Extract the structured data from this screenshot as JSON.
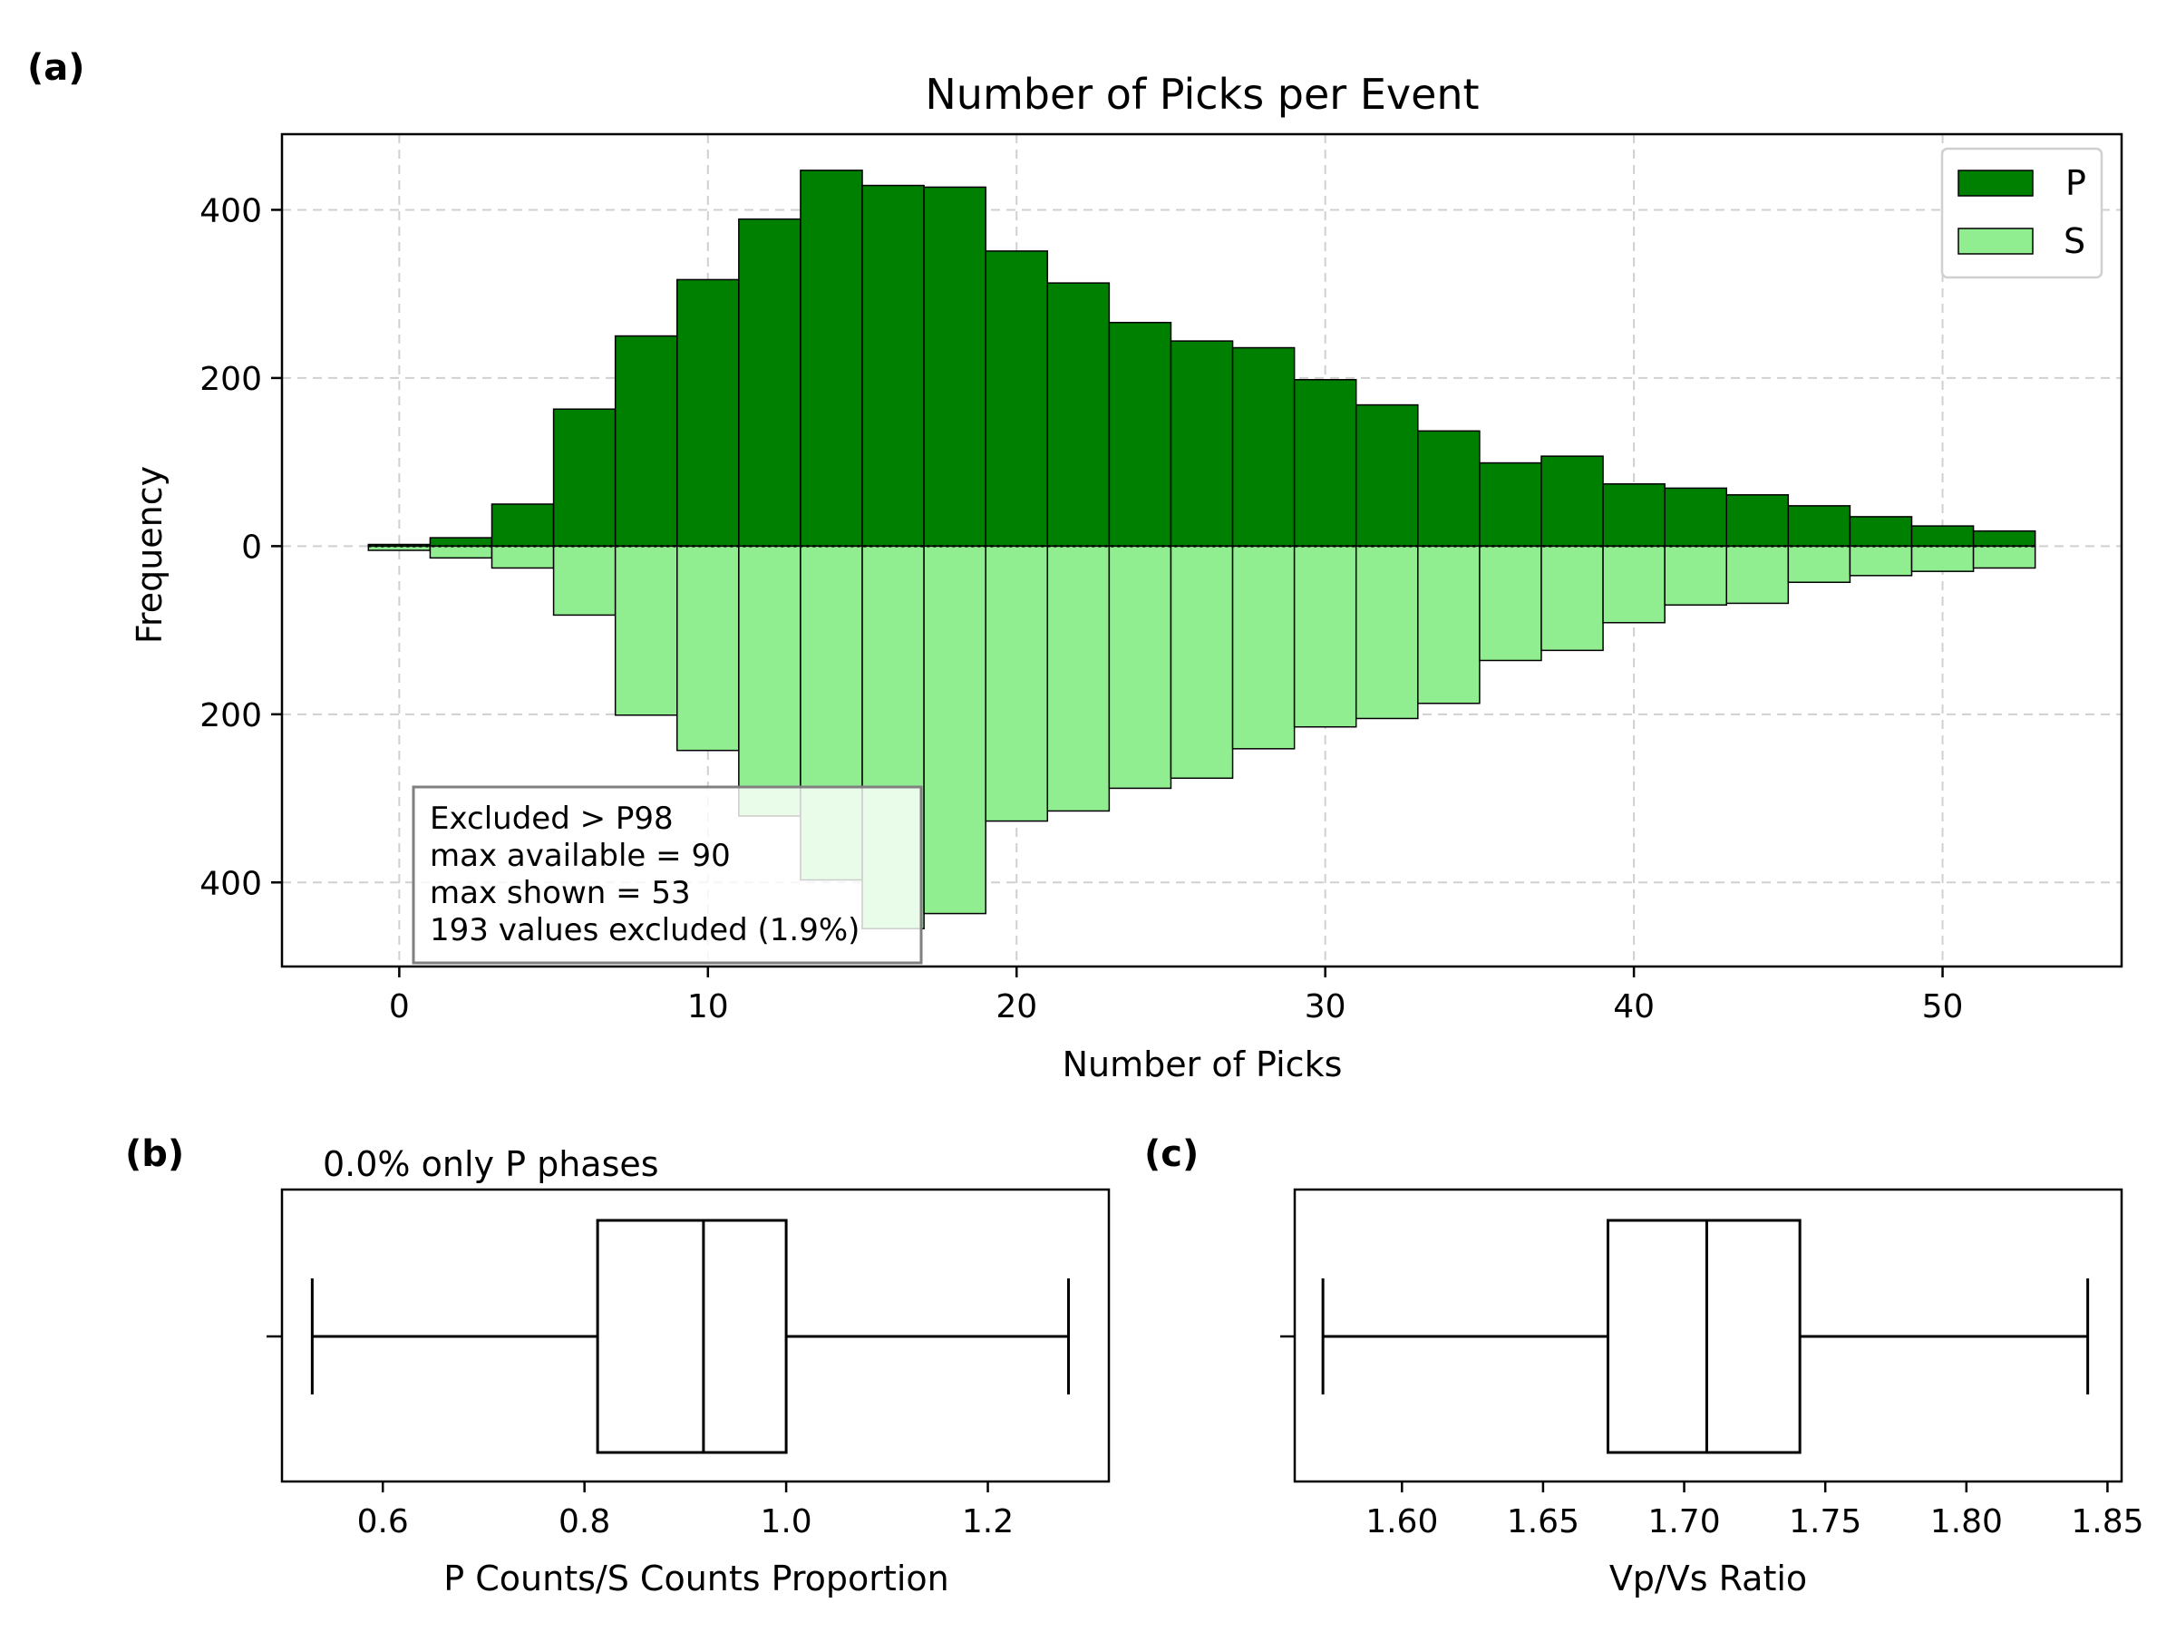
{
  "chart_data": [
    {
      "type": "bar",
      "panel_label": "(a)",
      "title": "Number of Picks per Event",
      "xlabel": "Number of Picks",
      "ylabel": "Frequency",
      "xlim": [
        -3.8,
        55.8
      ],
      "ylim": [
        -500,
        490
      ],
      "xticks": [
        0,
        10,
        20,
        30,
        40,
        50
      ],
      "yticks": [
        400,
        200,
        0,
        -200,
        -400
      ],
      "ytick_labels": [
        "400",
        "200",
        "0",
        "200",
        "400"
      ],
      "grid": true,
      "legend_position": "top-right",
      "bin_edges": [
        -1,
        1,
        3,
        5,
        7,
        9,
        11,
        13,
        15,
        17,
        19,
        21,
        23,
        25,
        27,
        29,
        31,
        33,
        35,
        37,
        39,
        41,
        43,
        45,
        47,
        49,
        51,
        53
      ],
      "series": [
        {
          "name": "P",
          "color": "#008000",
          "direction": "up",
          "values": [
            2,
            10,
            50,
            163,
            250,
            317,
            389,
            447,
            429,
            427,
            351,
            313,
            266,
            244,
            236,
            198,
            168,
            137,
            99,
            107,
            74,
            69,
            61,
            48,
            35,
            24,
            18
          ]
        },
        {
          "name": "S",
          "color": "#90ee90",
          "direction": "down",
          "values": [
            5,
            14,
            26,
            82,
            201,
            243,
            321,
            397,
            455,
            437,
            327,
            315,
            288,
            276,
            241,
            215,
            205,
            187,
            136,
            124,
            91,
            70,
            68,
            43,
            35,
            30,
            26
          ]
        }
      ],
      "annotation": {
        "lines": [
          "Excluded > P98",
          "max available = 90",
          "max shown = 53",
          "193 values excluded (1.9%)"
        ]
      }
    },
    {
      "type": "box",
      "panel_label": "(b)",
      "top_text": "0.0% only P phases",
      "xlabel": "P Counts/S Counts Proportion",
      "xlim": [
        0.5,
        1.32
      ],
      "xticks": [
        0.6,
        0.8,
        1.0,
        1.2
      ],
      "xtick_labels": [
        "0.6",
        "0.8",
        "1.0",
        "1.2"
      ],
      "stats": {
        "whislo": 0.53,
        "q1": 0.813,
        "med": 0.918,
        "q3": 1.0,
        "whishi": 1.28
      }
    },
    {
      "type": "box",
      "panel_label": "(c)",
      "xlabel": "Vp/Vs Ratio",
      "xlim": [
        1.562,
        1.855
      ],
      "xticks": [
        1.6,
        1.65,
        1.7,
        1.75,
        1.8,
        1.85
      ],
      "xtick_labels": [
        "1.60",
        "1.65",
        "1.70",
        "1.75",
        "1.80",
        "1.85"
      ],
      "stats": {
        "whislo": 1.572,
        "q1": 1.673,
        "med": 1.708,
        "q3": 1.741,
        "whishi": 1.843
      }
    }
  ]
}
